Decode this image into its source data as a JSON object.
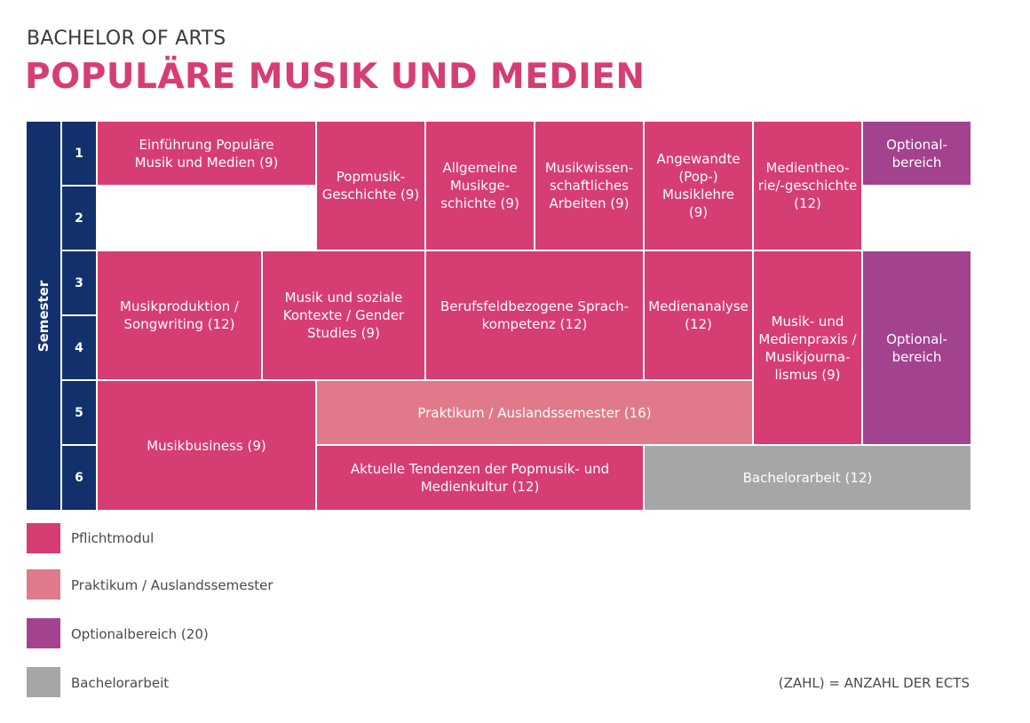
{
  "header": {
    "subtitle": "BACHELOR OF ARTS",
    "title": "POPULÄRE MUSIK UND MEDIEN"
  },
  "semester_label": "Semester",
  "semesters": [
    "1",
    "2",
    "3",
    "4",
    "5",
    "6"
  ],
  "modules": {
    "einfuehrung": "Einführung Populäre\nMusik und Medien (9)",
    "popmusik_geschichte": "Popmusik-\nGeschichte (9)",
    "allgemeine_musikgeschichte": "Allgemeine\nMusikge-\nschichte (9)",
    "musikwissenschaftliches_arbeiten": "Musikwissen-\nschaftliches\nArbeiten (9)",
    "angewandte_musiklehre": "Angewandte\n(Pop-)\nMusiklehre\n(9)",
    "medientheorie": "Medientheo-\nrie/-geschichte\n(12)",
    "optional_1": "Optional-\nbereich",
    "musikproduktion": "Musikproduktion /\nSongwriting (12)",
    "musik_soziale_kontexte": "Musik und soziale\nKontexte / Gender\nStudies (9)",
    "sprachkompetenz": "Berufsfeldbezogene Sprach-\nkompetenz (12)",
    "medienanalyse": "Medienanalyse\n(12)",
    "medienpraxis": "Musik- und\nMedienpraxis /\nMusikjourna-\nlismus (9)",
    "optional_2": "Optional-\nbereich",
    "musikbusiness": "Musikbusiness (9)",
    "praktikum": "Praktikum / Auslandssemester (16)",
    "aktuelle_tendenzen": "Aktuelle Tendenzen der Popmusik- und\nMedienkultur (12)",
    "bachelorarbeit": "Bachelorarbeit (12)"
  },
  "legend": [
    {
      "label": "Pflichtmodul",
      "color": "#d63d72"
    },
    {
      "label": "Praktikum / Auslandssemester",
      "color": "#e07a8a"
    },
    {
      "label": "Optionalbereich (20)",
      "color": "#a3428f"
    },
    {
      "label": "Bachelorarbeit",
      "color": "#a5a6a8"
    }
  ],
  "ects_note": "(ZAHL) = ANZAHL DER ECTS",
  "colors": {
    "pflicht": "#d63d72",
    "praktikum": "#e07a8a",
    "optional": "#a3428f",
    "bachelor": "#a5a6a8",
    "semester": "#12306c"
  }
}
